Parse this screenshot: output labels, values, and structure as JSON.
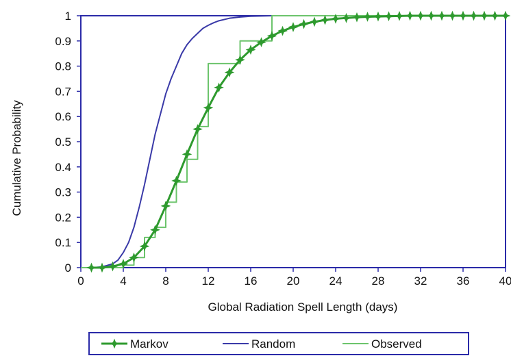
{
  "chart_data": {
    "type": "line",
    "title": "",
    "xlabel": "Global Radiation Spell Length (days)",
    "ylabel": "Cumulative Probability",
    "xlim": [
      0,
      40
    ],
    "ylim": [
      0,
      1
    ],
    "x_ticks": [
      0,
      4,
      8,
      12,
      16,
      20,
      24,
      28,
      32,
      36,
      40
    ],
    "y_ticks": [
      0,
      0.1,
      0.2,
      0.3,
      0.4,
      0.5,
      0.6,
      0.7,
      0.8,
      0.9,
      1
    ],
    "x_tick_labels": [
      "0",
      "4",
      "8",
      "12",
      "16",
      "20",
      "24",
      "28",
      "32",
      "36",
      "40"
    ],
    "y_tick_labels": [
      "0",
      "0.1",
      "0.2",
      "0.3",
      "0.4",
      "0.5",
      "0.6",
      "0.7",
      "0.8",
      "0.9",
      "1"
    ],
    "grid": false,
    "legend_position": "bottom",
    "series": [
      {
        "name": "Markov",
        "color": "#2e9a2e",
        "style": "line-with-markers",
        "marker": "four-point-star",
        "x": [
          1,
          2,
          3,
          4,
          5,
          6,
          7,
          8,
          9,
          10,
          11,
          12,
          13,
          14,
          15,
          16,
          17,
          18,
          19,
          20,
          21,
          22,
          23,
          24,
          25,
          26,
          27,
          28,
          29,
          30,
          31,
          32,
          33,
          34,
          35,
          36,
          37,
          38,
          39,
          40
        ],
        "y": [
          0.0,
          0.0,
          0.005,
          0.015,
          0.04,
          0.085,
          0.15,
          0.245,
          0.345,
          0.45,
          0.55,
          0.635,
          0.715,
          0.775,
          0.825,
          0.865,
          0.895,
          0.92,
          0.94,
          0.955,
          0.967,
          0.976,
          0.983,
          0.988,
          0.991,
          0.994,
          0.996,
          0.997,
          0.998,
          0.999,
          1.0,
          1.0,
          1.0,
          1.0,
          1.0,
          1.0,
          1.0,
          1.0,
          1.0,
          1.0
        ]
      },
      {
        "name": "Random",
        "color": "#3a3aa8",
        "style": "line",
        "x": [
          0,
          1,
          2,
          3,
          3.5,
          4,
          4.5,
          5,
          5.5,
          6,
          6.5,
          7,
          7.5,
          8,
          8.5,
          9,
          9.5,
          10,
          10.5,
          11,
          11.5,
          12,
          12.5,
          13,
          14,
          15,
          16,
          17,
          18,
          20,
          24,
          30,
          36,
          40
        ],
        "y": [
          0.0,
          0.0,
          0.003,
          0.015,
          0.03,
          0.06,
          0.1,
          0.16,
          0.24,
          0.33,
          0.43,
          0.53,
          0.61,
          0.69,
          0.75,
          0.8,
          0.85,
          0.885,
          0.91,
          0.93,
          0.95,
          0.962,
          0.972,
          0.98,
          0.99,
          0.995,
          0.998,
          0.999,
          1.0,
          1.0,
          1.0,
          1.0,
          1.0,
          1.0
        ]
      },
      {
        "name": "Observed",
        "color": "#6cc46c",
        "style": "step",
        "x": [
          0,
          2,
          4,
          5,
          6,
          7,
          8,
          9,
          10,
          11,
          12,
          14,
          15,
          17,
          18,
          40
        ],
        "y": [
          0.0,
          0.0,
          0.01,
          0.04,
          0.12,
          0.16,
          0.26,
          0.34,
          0.43,
          0.56,
          0.81,
          0.81,
          0.9,
          0.9,
          1.0,
          1.0
        ]
      }
    ]
  }
}
